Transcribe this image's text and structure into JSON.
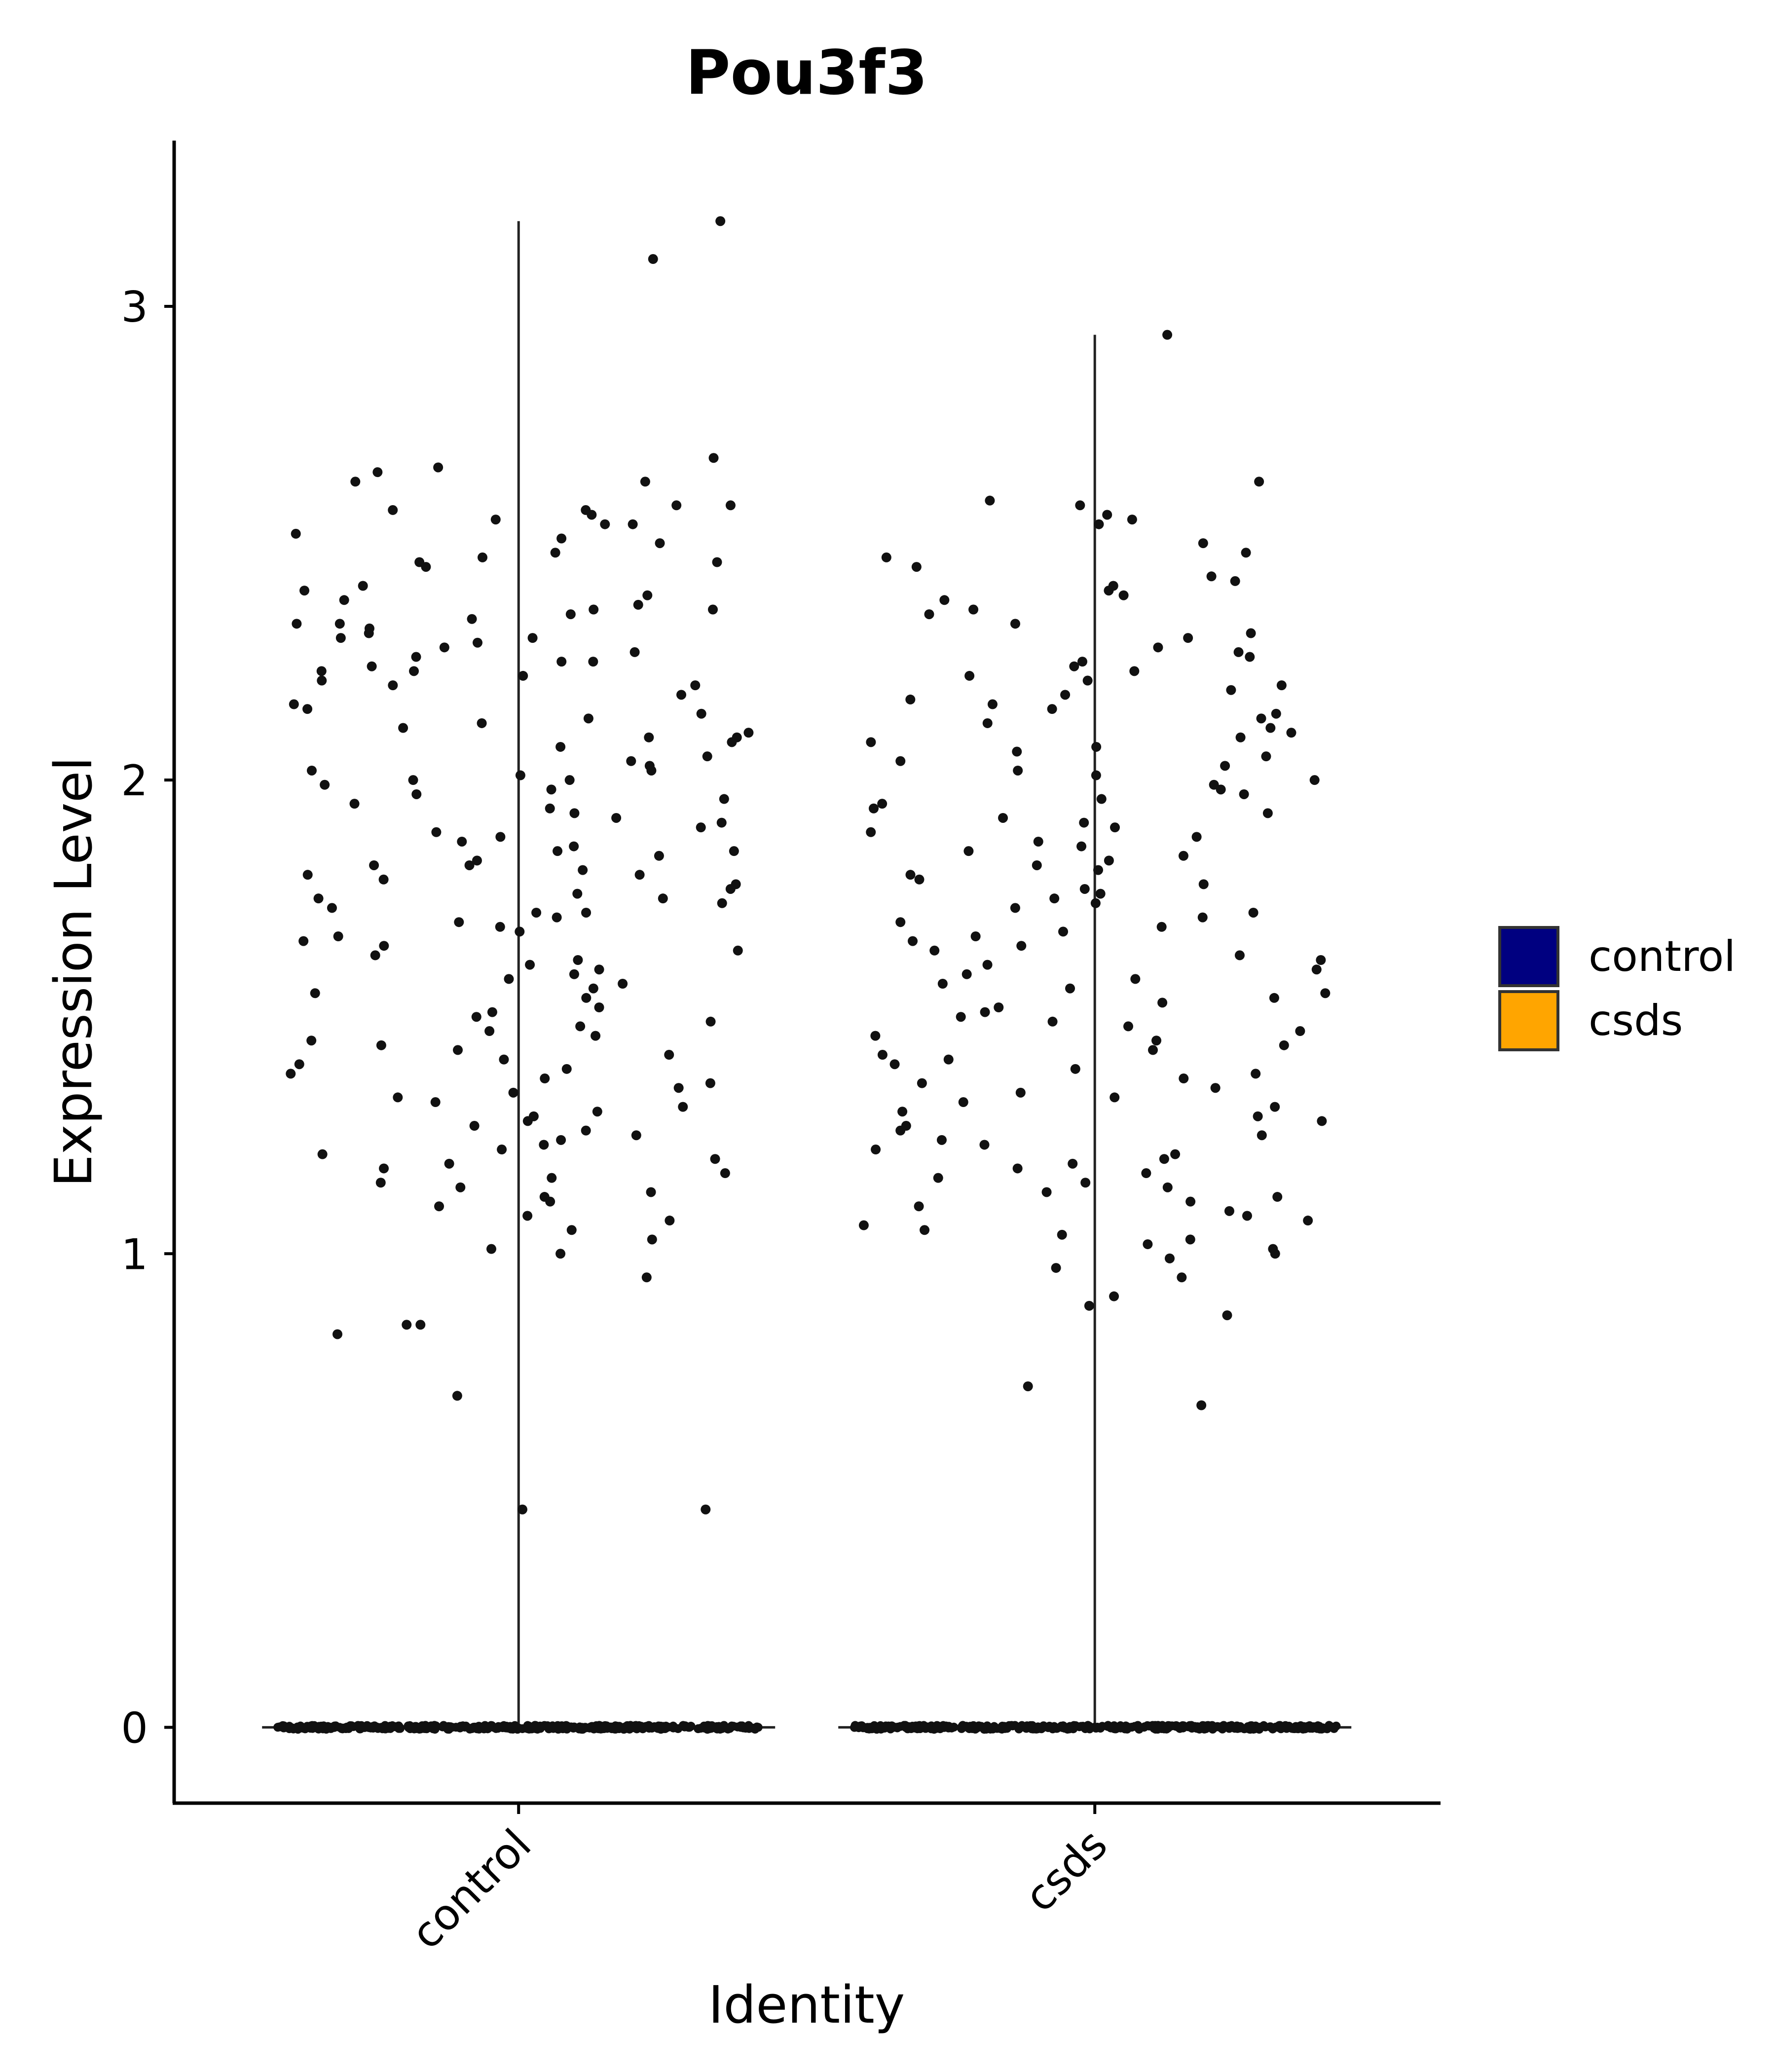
{
  "chart_data": {
    "type": "violin",
    "title": "Pou3f3",
    "xlabel": "Identity",
    "ylabel": "Expression Level",
    "categories": [
      "control",
      "csds"
    ],
    "ylim": [
      -0.16,
      3.35
    ],
    "yticks": [
      0,
      1,
      2,
      3
    ],
    "legend": {
      "position": "right",
      "entries": [
        {
          "label": "control",
          "color": "#000080"
        },
        {
          "label": "csds",
          "color": "#FFA500"
        }
      ]
    },
    "series": [
      {
        "category": "control",
        "fill_color": "#000080",
        "max": 3.18,
        "zero_count": 420,
        "points": [
          3.18,
          3.1,
          2.68,
          2.66,
          2.65,
          2.63,
          2.63,
          2.58,
          2.58,
          2.57,
          2.57,
          2.56,
          2.55,
          2.54,
          2.54,
          2.52,
          2.51,
          2.5,
          2.48,
          2.47,
          2.46,
          2.46,
          2.45,
          2.41,
          2.4,
          2.39,
          2.38,
          2.37,
          2.36,
          2.36,
          2.35,
          2.34,
          2.33,
          2.33,
          2.32,
          2.31,
          2.3,
          2.3,
          2.29,
          2.28,
          2.27,
          2.26,
          2.25,
          2.25,
          2.24,
          2.23,
          2.23,
          2.22,
          2.21,
          2.2,
          2.2,
          2.18,
          2.16,
          2.15,
          2.14,
          2.13,
          2.12,
          2.11,
          2.1,
          2.09,
          2.09,
          2.08,
          2.07,
          2.05,
          2.04,
          2.03,
          2.02,
          2.02,
          2.01,
          2.0,
          2.0,
          1.99,
          1.98,
          1.97,
          1.96,
          1.95,
          1.94,
          1.93,
          1.92,
          1.91,
          1.9,
          1.89,
          1.88,
          1.87,
          1.86,
          1.85,
          1.85,
          1.84,
          1.83,
          1.82,
          1.82,
          1.81,
          1.8,
          1.8,
          1.79,
          1.78,
          1.77,
          1.76,
          1.75,
          1.75,
          1.74,
          1.73,
          1.72,
          1.72,
          1.71,
          1.7,
          1.69,
          1.68,
          1.67,
          1.66,
          1.65,
          1.64,
          1.63,
          1.62,
          1.61,
          1.6,
          1.59,
          1.58,
          1.57,
          1.56,
          1.55,
          1.54,
          1.52,
          1.51,
          1.5,
          1.49,
          1.48,
          1.47,
          1.46,
          1.45,
          1.44,
          1.43,
          1.42,
          1.41,
          1.4,
          1.39,
          1.38,
          1.37,
          1.36,
          1.35,
          1.34,
          1.33,
          1.32,
          1.31,
          1.3,
          1.29,
          1.28,
          1.27,
          1.26,
          1.25,
          1.24,
          1.23,
          1.22,
          1.21,
          1.2,
          1.19,
          1.18,
          1.17,
          1.16,
          1.15,
          1.14,
          1.13,
          1.12,
          1.11,
          1.1,
          1.08,
          1.07,
          1.05,
          1.03,
          1.01,
          1.0,
          0.95,
          0.85,
          0.85,
          0.83,
          0.7,
          0.46,
          0.46
        ]
      },
      {
        "category": "csds",
        "fill_color": "#FFA500",
        "max": 2.94,
        "zero_count": 400,
        "points": [
          2.94,
          2.63,
          2.59,
          2.58,
          2.56,
          2.55,
          2.54,
          2.5,
          2.48,
          2.47,
          2.45,
          2.43,
          2.42,
          2.41,
          2.4,
          2.39,
          2.38,
          2.36,
          2.35,
          2.33,
          2.31,
          2.3,
          2.28,
          2.27,
          2.26,
          2.25,
          2.24,
          2.23,
          2.22,
          2.21,
          2.2,
          2.19,
          2.18,
          2.17,
          2.16,
          2.15,
          2.14,
          2.13,
          2.12,
          2.11,
          2.1,
          2.09,
          2.08,
          2.07,
          2.06,
          2.05,
          2.04,
          2.03,
          2.02,
          2.01,
          2.0,
          1.99,
          1.98,
          1.97,
          1.96,
          1.95,
          1.94,
          1.93,
          1.92,
          1.91,
          1.9,
          1.89,
          1.88,
          1.87,
          1.86,
          1.85,
          1.84,
          1.83,
          1.82,
          1.81,
          1.8,
          1.79,
          1.78,
          1.77,
          1.76,
          1.75,
          1.74,
          1.73,
          1.72,
          1.71,
          1.7,
          1.69,
          1.68,
          1.67,
          1.66,
          1.65,
          1.64,
          1.63,
          1.62,
          1.61,
          1.6,
          1.59,
          1.58,
          1.57,
          1.56,
          1.55,
          1.54,
          1.53,
          1.52,
          1.51,
          1.5,
          1.49,
          1.48,
          1.47,
          1.46,
          1.45,
          1.44,
          1.43,
          1.42,
          1.41,
          1.4,
          1.39,
          1.38,
          1.37,
          1.36,
          1.35,
          1.34,
          1.33,
          1.32,
          1.31,
          1.3,
          1.29,
          1.28,
          1.27,
          1.26,
          1.25,
          1.24,
          1.23,
          1.22,
          1.21,
          1.2,
          1.19,
          1.18,
          1.17,
          1.16,
          1.15,
          1.14,
          1.13,
          1.12,
          1.11,
          1.1,
          1.09,
          1.08,
          1.07,
          1.06,
          1.05,
          1.04,
          1.03,
          1.02,
          1.01,
          1.0,
          0.99,
          0.97,
          0.95,
          0.91,
          0.89,
          0.87,
          0.72,
          0.68
        ]
      }
    ]
  }
}
